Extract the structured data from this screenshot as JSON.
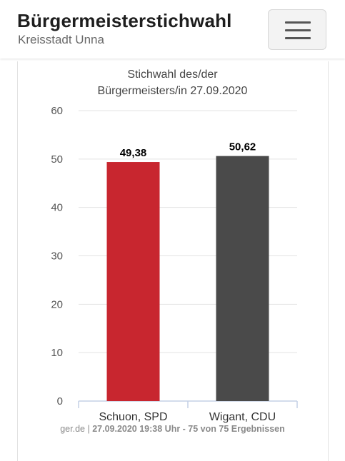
{
  "header": {
    "title": "Bürgermeisterstichwahl",
    "subtitle": "Kreisstadt Unna",
    "menu_icon": "hamburger-menu-icon"
  },
  "chart_data": {
    "type": "bar",
    "title_lines": [
      "Stichwahl des/der",
      "Bürgermeisters/in 27.09.2020"
    ],
    "categories": [
      "Schuon, SPD",
      "Wigant, CDU"
    ],
    "values": [
      49.38,
      50.62
    ],
    "value_labels": [
      "49,38",
      "50,62"
    ],
    "colors": [
      "#c8262f",
      "#4a4a4a"
    ],
    "ylim": [
      0,
      60
    ],
    "yticks": [
      "0",
      "10",
      "20",
      "30",
      "40",
      "50",
      "60"
    ],
    "grid": true,
    "legend": "none"
  },
  "credits": {
    "source": "ger.de",
    "separator": " | ",
    "text": "27.09.2020 19:38 Uhr - 75 von 75 Ergebnissen"
  }
}
